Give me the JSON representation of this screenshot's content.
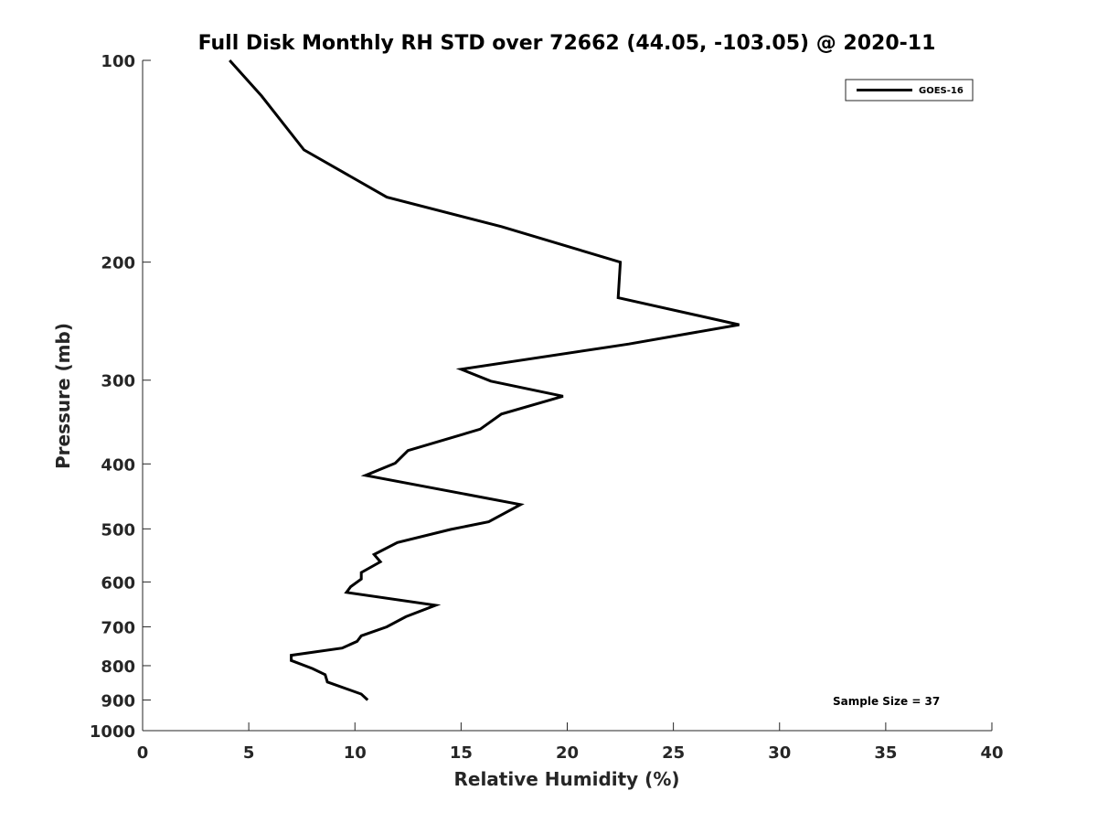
{
  "chart_data": {
    "type": "line",
    "title": "Full Disk Monthly RH STD over 72662 (44.05, -103.05) @ 2020-11",
    "xlabel": "Relative Humidity (%)",
    "ylabel": "Pressure (mb)",
    "xlim": [
      0,
      40
    ],
    "ylim": [
      100,
      1000
    ],
    "yscale": "log",
    "y_reversed": true,
    "xticks": [
      0,
      5,
      10,
      15,
      20,
      25,
      30,
      35,
      40
    ],
    "yticks": [
      100,
      200,
      300,
      400,
      500,
      600,
      700,
      800,
      900,
      1000
    ],
    "grid": false,
    "legend_position": "top-right",
    "annotation": "Sample Size = 37",
    "series": [
      {
        "name": "GOES-16",
        "color": "#000000",
        "x": [
          4.1,
          5.6,
          7.6,
          11.5,
          16.9,
          22.5,
          22.5,
          22.4,
          28.1,
          22.9,
          15.0,
          16.4,
          19.8,
          16.9,
          15.9,
          12.5,
          11.9,
          10.5,
          17.8,
          16.3,
          14.5,
          12.0,
          10.9,
          11.2,
          10.3,
          10.3,
          9.8,
          9.6,
          13.8,
          12.4,
          11.5,
          10.3,
          10.1,
          9.4,
          7.0,
          7.0,
          8.0,
          8.6,
          8.7,
          10.3,
          10.6
        ],
        "y": [
          100,
          113,
          136,
          160,
          177,
          200,
          200,
          226,
          248,
          265,
          289,
          301,
          317,
          337,
          355,
          382,
          399,
          416,
          460,
          488,
          501,
          524,
          546,
          560,
          581,
          594,
          610,
          622,
          650,
          676,
          700,
          722,
          736,
          753,
          772,
          786,
          808,
          825,
          846,
          882,
          900
        ]
      }
    ]
  }
}
